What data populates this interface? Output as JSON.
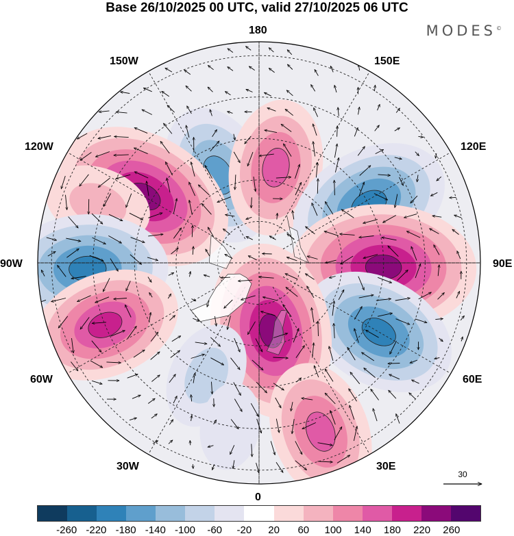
{
  "title": "Base 26/10/2025 00 UTC, valid 27/10/2025 06 UTC",
  "brand": "MODES",
  "brand_mark": "©",
  "lon_labels": {
    "n180": "180",
    "e150": "150E",
    "w150": "150W",
    "e120": "120E",
    "w120": "120W",
    "e90": "90E",
    "w90": "90W",
    "e60": "60E",
    "w60": "60W",
    "e30": "30E",
    "w30": "30W",
    "n0": "0"
  },
  "vector_scale": {
    "label": "30"
  },
  "colorbar": {
    "colors": [
      "#0f3b5e",
      "#17608f",
      "#2f82b8",
      "#5f9fcc",
      "#98bddb",
      "#c3d3e8",
      "#e4e4f1",
      "#ffffff",
      "#fbdada",
      "#f4b3bf",
      "#ee86a8",
      "#e05aa6",
      "#c8208d",
      "#8b0a7a",
      "#53066e"
    ],
    "ticks": [
      "-260",
      "-220",
      "-180",
      "-140",
      "-100",
      "-60",
      "-20",
      "20",
      "60",
      "100",
      "140",
      "180",
      "220",
      "260"
    ]
  },
  "anomalies": [
    {
      "name": "anom-n-neg-1",
      "lon": -155,
      "lat": 55,
      "value": -160
    },
    {
      "name": "anom-n-pos-1",
      "lon": 170,
      "lat": 55,
      "value": 150
    },
    {
      "name": "anom-nw-pos",
      "lon": -120,
      "lat": 42,
      "value": 240
    },
    {
      "name": "anom-w-pos",
      "lon": -110,
      "lat": 28,
      "value": 90
    },
    {
      "name": "anom-w-neg",
      "lon": -88,
      "lat": 28,
      "value": -200
    },
    {
      "name": "anom-sw-pos",
      "lon": -68,
      "lat": 30,
      "value": 180
    },
    {
      "name": "anom-ne-neg",
      "lon": 118,
      "lat": 45,
      "value": -200
    },
    {
      "name": "anom-e-pos",
      "lon": 88,
      "lat": 45,
      "value": 250
    },
    {
      "name": "anom-se-neg",
      "lon": 60,
      "lat": 40,
      "value": -190
    },
    {
      "name": "anom-s-pos",
      "lon": 10,
      "lat": 65,
      "value": 230
    },
    {
      "name": "anom-ssw-neg",
      "lon": -25,
      "lat": 45,
      "value": -90
    },
    {
      "name": "anom-se-pos",
      "lon": 20,
      "lat": 25,
      "value": 160
    },
    {
      "name": "anom-s-neg",
      "lon": -10,
      "lat": 30,
      "value": -50
    }
  ]
}
